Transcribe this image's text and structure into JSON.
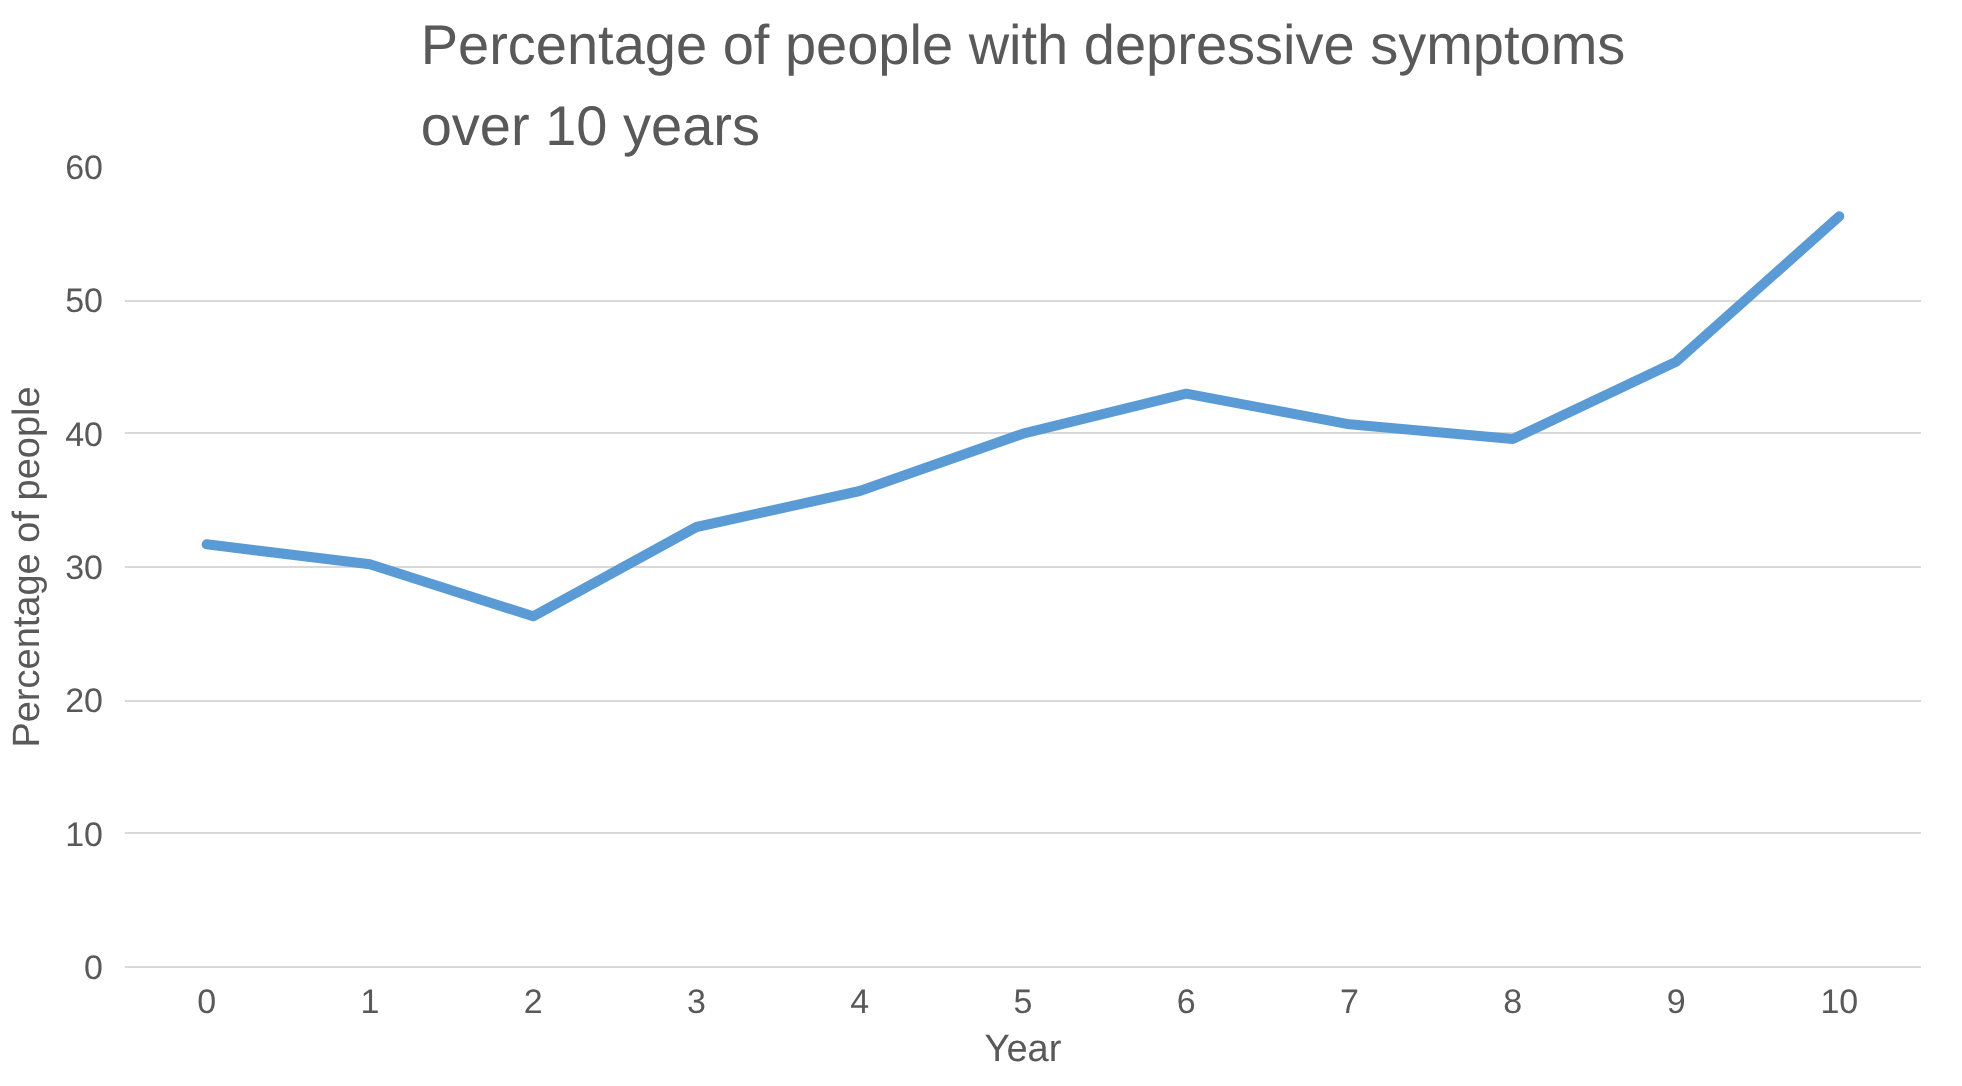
{
  "chart_data": {
    "type": "line",
    "title": "Percentage of people with depressive symptoms\nover 10 years",
    "xlabel": "Year",
    "ylabel": "Percentage of people",
    "categories": [
      "0",
      "1",
      "2",
      "3",
      "4",
      "5",
      "6",
      "7",
      "8",
      "9",
      "10"
    ],
    "series": [
      {
        "color": "#5b9bd5",
        "values": [
          31.7,
          30.2,
          26.3,
          33.0,
          35.7,
          40.0,
          43.0,
          40.7,
          39.6,
          45.4,
          56.3
        ]
      }
    ],
    "ylim": [
      0,
      60
    ],
    "yticks": [
      0,
      10,
      20,
      30,
      40,
      50,
      60
    ],
    "grid": "y",
    "marker": "none",
    "line_style": "solid"
  }
}
